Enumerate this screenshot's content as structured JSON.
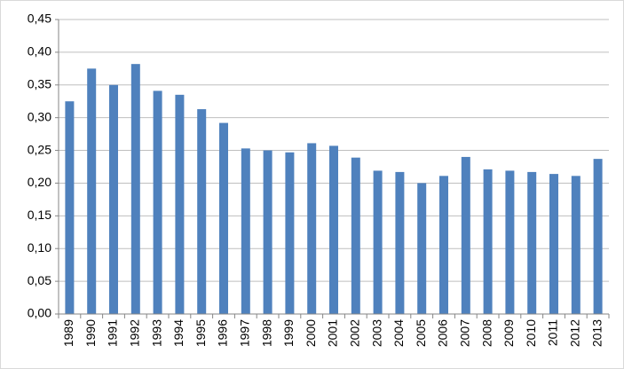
{
  "chart_data": {
    "type": "bar",
    "categories": [
      "1989",
      "1990",
      "1991",
      "1992",
      "1993",
      "1994",
      "1995",
      "1996",
      "1997",
      "1998",
      "1999",
      "2000",
      "2001",
      "2002",
      "2003",
      "2004",
      "2005",
      "2006",
      "2007",
      "2008",
      "2009",
      "2010",
      "2011",
      "2012",
      "2013"
    ],
    "values": [
      0.325,
      0.375,
      0.35,
      0.382,
      0.341,
      0.335,
      0.313,
      0.292,
      0.253,
      0.25,
      0.247,
      0.261,
      0.257,
      0.239,
      0.219,
      0.217,
      0.2,
      0.211,
      0.24,
      0.221,
      0.219,
      0.217,
      0.214,
      0.211,
      0.237
    ],
    "color": "#4f81bd",
    "ylim": [
      0,
      0.45
    ],
    "yticks": [
      {
        "value": 0,
        "label": "0,00"
      },
      {
        "value": 0.05,
        "label": "0,05"
      },
      {
        "value": 0.1,
        "label": "0,10"
      },
      {
        "value": 0.15,
        "label": "0,15"
      },
      {
        "value": 0.2,
        "label": "0,20"
      },
      {
        "value": 0.25,
        "label": "0,25"
      },
      {
        "value": 0.3,
        "label": "0,30"
      },
      {
        "value": 0.35,
        "label": "0,35"
      },
      {
        "value": 0.4,
        "label": "0,40"
      },
      {
        "value": 0.45,
        "label": "0,45"
      }
    ],
    "grid": true
  }
}
